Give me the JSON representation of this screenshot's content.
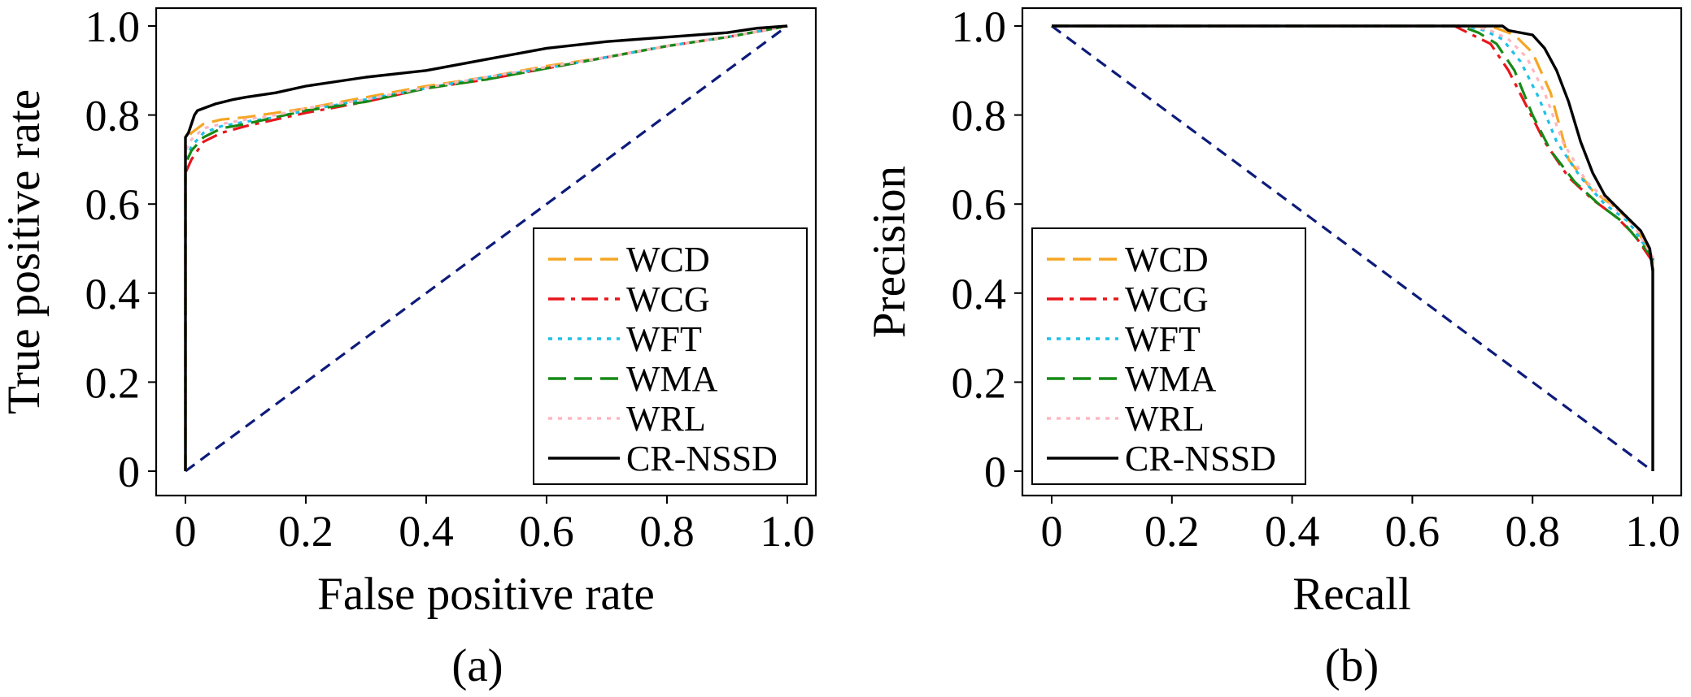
{
  "colors": {
    "WCD": "#f5a623",
    "WCG": "#e8161b",
    "WFT": "#1ec0e8",
    "WMA": "#168a16",
    "WRL": "#ffb6c1",
    "CR-NSSD": "#000000",
    "chance": "#0d1b7a"
  },
  "chart_data": [
    {
      "type": "line",
      "caption": "(a)",
      "xlabel": "False positive rate",
      "ylabel": "True positive rate",
      "xlim": [
        0,
        1.0
      ],
      "ylim": [
        0,
        1.0
      ],
      "xticks": [
        0,
        0.2,
        0.4,
        0.6,
        0.8,
        1.0
      ],
      "xtick_labels": [
        "0",
        "0.2",
        "0.4",
        "0.6",
        "0.8",
        "1.0"
      ],
      "yticks": [
        0,
        0.2,
        0.4,
        0.6,
        0.8,
        1.0
      ],
      "ytick_labels": [
        "0",
        "0.2",
        "0.4",
        "0.6",
        "0.8",
        "1.0"
      ],
      "grid": false,
      "legend_position": "lower-right",
      "series": [
        {
          "name": "WCD",
          "style": "dashed",
          "x": [
            0,
            0,
            0.01,
            0.03,
            0.06,
            0.1,
            0.15,
            0.2,
            0.3,
            0.4,
            0.5,
            0.6,
            0.7,
            0.8,
            0.9,
            0.96,
            1.0
          ],
          "y": [
            0,
            0.74,
            0.76,
            0.78,
            0.79,
            0.795,
            0.805,
            0.815,
            0.84,
            0.865,
            0.885,
            0.91,
            0.93,
            0.955,
            0.975,
            0.99,
            1.0
          ]
        },
        {
          "name": "WCG",
          "style": "dashdot",
          "x": [
            0,
            0,
            0.01,
            0.03,
            0.06,
            0.1,
            0.15,
            0.2,
            0.3,
            0.4,
            0.5,
            0.6,
            0.7,
            0.8,
            0.9,
            0.96,
            1.0
          ],
          "y": [
            0,
            0.67,
            0.7,
            0.74,
            0.76,
            0.775,
            0.79,
            0.805,
            0.83,
            0.86,
            0.88,
            0.905,
            0.93,
            0.955,
            0.975,
            0.99,
            1.0
          ]
        },
        {
          "name": "WFT",
          "style": "dotted",
          "x": [
            0,
            0,
            0.01,
            0.03,
            0.06,
            0.1,
            0.15,
            0.2,
            0.3,
            0.4,
            0.5,
            0.6,
            0.7,
            0.8,
            0.9,
            0.96,
            1.0
          ],
          "y": [
            0,
            0.7,
            0.73,
            0.76,
            0.775,
            0.785,
            0.795,
            0.81,
            0.835,
            0.86,
            0.885,
            0.905,
            0.93,
            0.955,
            0.975,
            0.99,
            1.0
          ]
        },
        {
          "name": "WMA",
          "style": "dashed",
          "x": [
            0,
            0,
            0.01,
            0.03,
            0.06,
            0.1,
            0.15,
            0.2,
            0.3,
            0.4,
            0.5,
            0.6,
            0.7,
            0.8,
            0.9,
            0.96,
            1.0
          ],
          "y": [
            0,
            0.69,
            0.72,
            0.75,
            0.77,
            0.78,
            0.795,
            0.81,
            0.83,
            0.86,
            0.88,
            0.905,
            0.93,
            0.955,
            0.975,
            0.99,
            1.0
          ]
        },
        {
          "name": "WRL",
          "style": "dotted",
          "x": [
            0,
            0,
            0.01,
            0.03,
            0.06,
            0.1,
            0.15,
            0.2,
            0.3,
            0.4,
            0.5,
            0.6,
            0.7,
            0.8,
            0.9,
            0.96,
            1.0
          ],
          "y": [
            0,
            0.72,
            0.745,
            0.77,
            0.78,
            0.79,
            0.8,
            0.815,
            0.835,
            0.862,
            0.885,
            0.908,
            0.93,
            0.955,
            0.975,
            0.99,
            1.0
          ]
        },
        {
          "name": "CR-NSSD",
          "style": "solid",
          "x": [
            0,
            0,
            0.005,
            0.01,
            0.015,
            0.02,
            0.03,
            0.05,
            0.08,
            0.1,
            0.15,
            0.2,
            0.25,
            0.3,
            0.4,
            0.5,
            0.6,
            0.7,
            0.8,
            0.9,
            0.95,
            1.0
          ],
          "y": [
            0,
            0.75,
            0.76,
            0.78,
            0.8,
            0.81,
            0.815,
            0.825,
            0.835,
            0.84,
            0.85,
            0.865,
            0.875,
            0.885,
            0.9,
            0.925,
            0.95,
            0.965,
            0.975,
            0.985,
            0.995,
            1.0
          ]
        },
        {
          "name": "",
          "style": "chance",
          "x": [
            0,
            1
          ],
          "y": [
            0,
            1
          ]
        }
      ]
    },
    {
      "type": "line",
      "caption": "(b)",
      "xlabel": "Recall",
      "ylabel": "Precision",
      "xlim": [
        0,
        1.0
      ],
      "ylim": [
        0,
        1.0
      ],
      "xticks": [
        0,
        0.2,
        0.4,
        0.6,
        0.8,
        1.0
      ],
      "xtick_labels": [
        "0",
        "0.2",
        "0.4",
        "0.6",
        "0.8",
        "1.0"
      ],
      "yticks": [
        0,
        0.2,
        0.4,
        0.6,
        0.8,
        1.0
      ],
      "ytick_labels": [
        "0",
        "0.2",
        "0.4",
        "0.6",
        "0.8",
        "1.0"
      ],
      "grid": false,
      "legend_position": "lower-left",
      "series": [
        {
          "name": "WCD",
          "style": "dashed",
          "x": [
            0,
            0.7,
            0.74,
            0.77,
            0.8,
            0.83,
            0.86,
            0.9,
            0.94,
            0.97,
            1.0,
            1.0
          ],
          "y": [
            1.0,
            1.0,
            0.995,
            0.98,
            0.94,
            0.85,
            0.7,
            0.63,
            0.59,
            0.55,
            0.48,
            0.45
          ]
        },
        {
          "name": "WCG",
          "style": "dashdot",
          "x": [
            0,
            0.67,
            0.7,
            0.73,
            0.76,
            0.79,
            0.82,
            0.86,
            0.9,
            0.94,
            0.97,
            1.0,
            1.0
          ],
          "y": [
            1.0,
            1.0,
            0.98,
            0.96,
            0.9,
            0.82,
            0.74,
            0.66,
            0.61,
            0.57,
            0.53,
            0.47,
            0.45
          ]
        },
        {
          "name": "WFT",
          "style": "dotted",
          "x": [
            0,
            0.69,
            0.72,
            0.75,
            0.78,
            0.81,
            0.84,
            0.88,
            0.92,
            0.96,
            1.0,
            1.0
          ],
          "y": [
            1.0,
            1.0,
            0.99,
            0.97,
            0.92,
            0.84,
            0.74,
            0.66,
            0.6,
            0.56,
            0.48,
            0.45
          ]
        },
        {
          "name": "WMA",
          "style": "dashed",
          "x": [
            0,
            0.68,
            0.71,
            0.74,
            0.77,
            0.8,
            0.83,
            0.87,
            0.91,
            0.95,
            1.0,
            1.0
          ],
          "y": [
            1.0,
            1.0,
            0.985,
            0.96,
            0.9,
            0.8,
            0.72,
            0.65,
            0.6,
            0.56,
            0.48,
            0.45
          ]
        },
        {
          "name": "WRL",
          "style": "dotted",
          "x": [
            0,
            0.7,
            0.73,
            0.76,
            0.79,
            0.82,
            0.85,
            0.89,
            0.93,
            0.97,
            1.0,
            1.0
          ],
          "y": [
            1.0,
            1.0,
            0.99,
            0.97,
            0.93,
            0.85,
            0.74,
            0.65,
            0.6,
            0.55,
            0.48,
            0.45
          ]
        },
        {
          "name": "CR-NSSD",
          "style": "solid",
          "x": [
            0,
            0.75,
            0.76,
            0.8,
            0.82,
            0.84,
            0.86,
            0.88,
            0.9,
            0.92,
            0.95,
            0.98,
            0.995,
            1.0,
            1.0
          ],
          "y": [
            1.0,
            1.0,
            0.99,
            0.98,
            0.95,
            0.9,
            0.83,
            0.74,
            0.67,
            0.62,
            0.58,
            0.54,
            0.5,
            0.45,
            0.0
          ]
        },
        {
          "name": "",
          "style": "chance",
          "x": [
            0,
            1
          ],
          "y": [
            1,
            0
          ]
        }
      ]
    }
  ]
}
